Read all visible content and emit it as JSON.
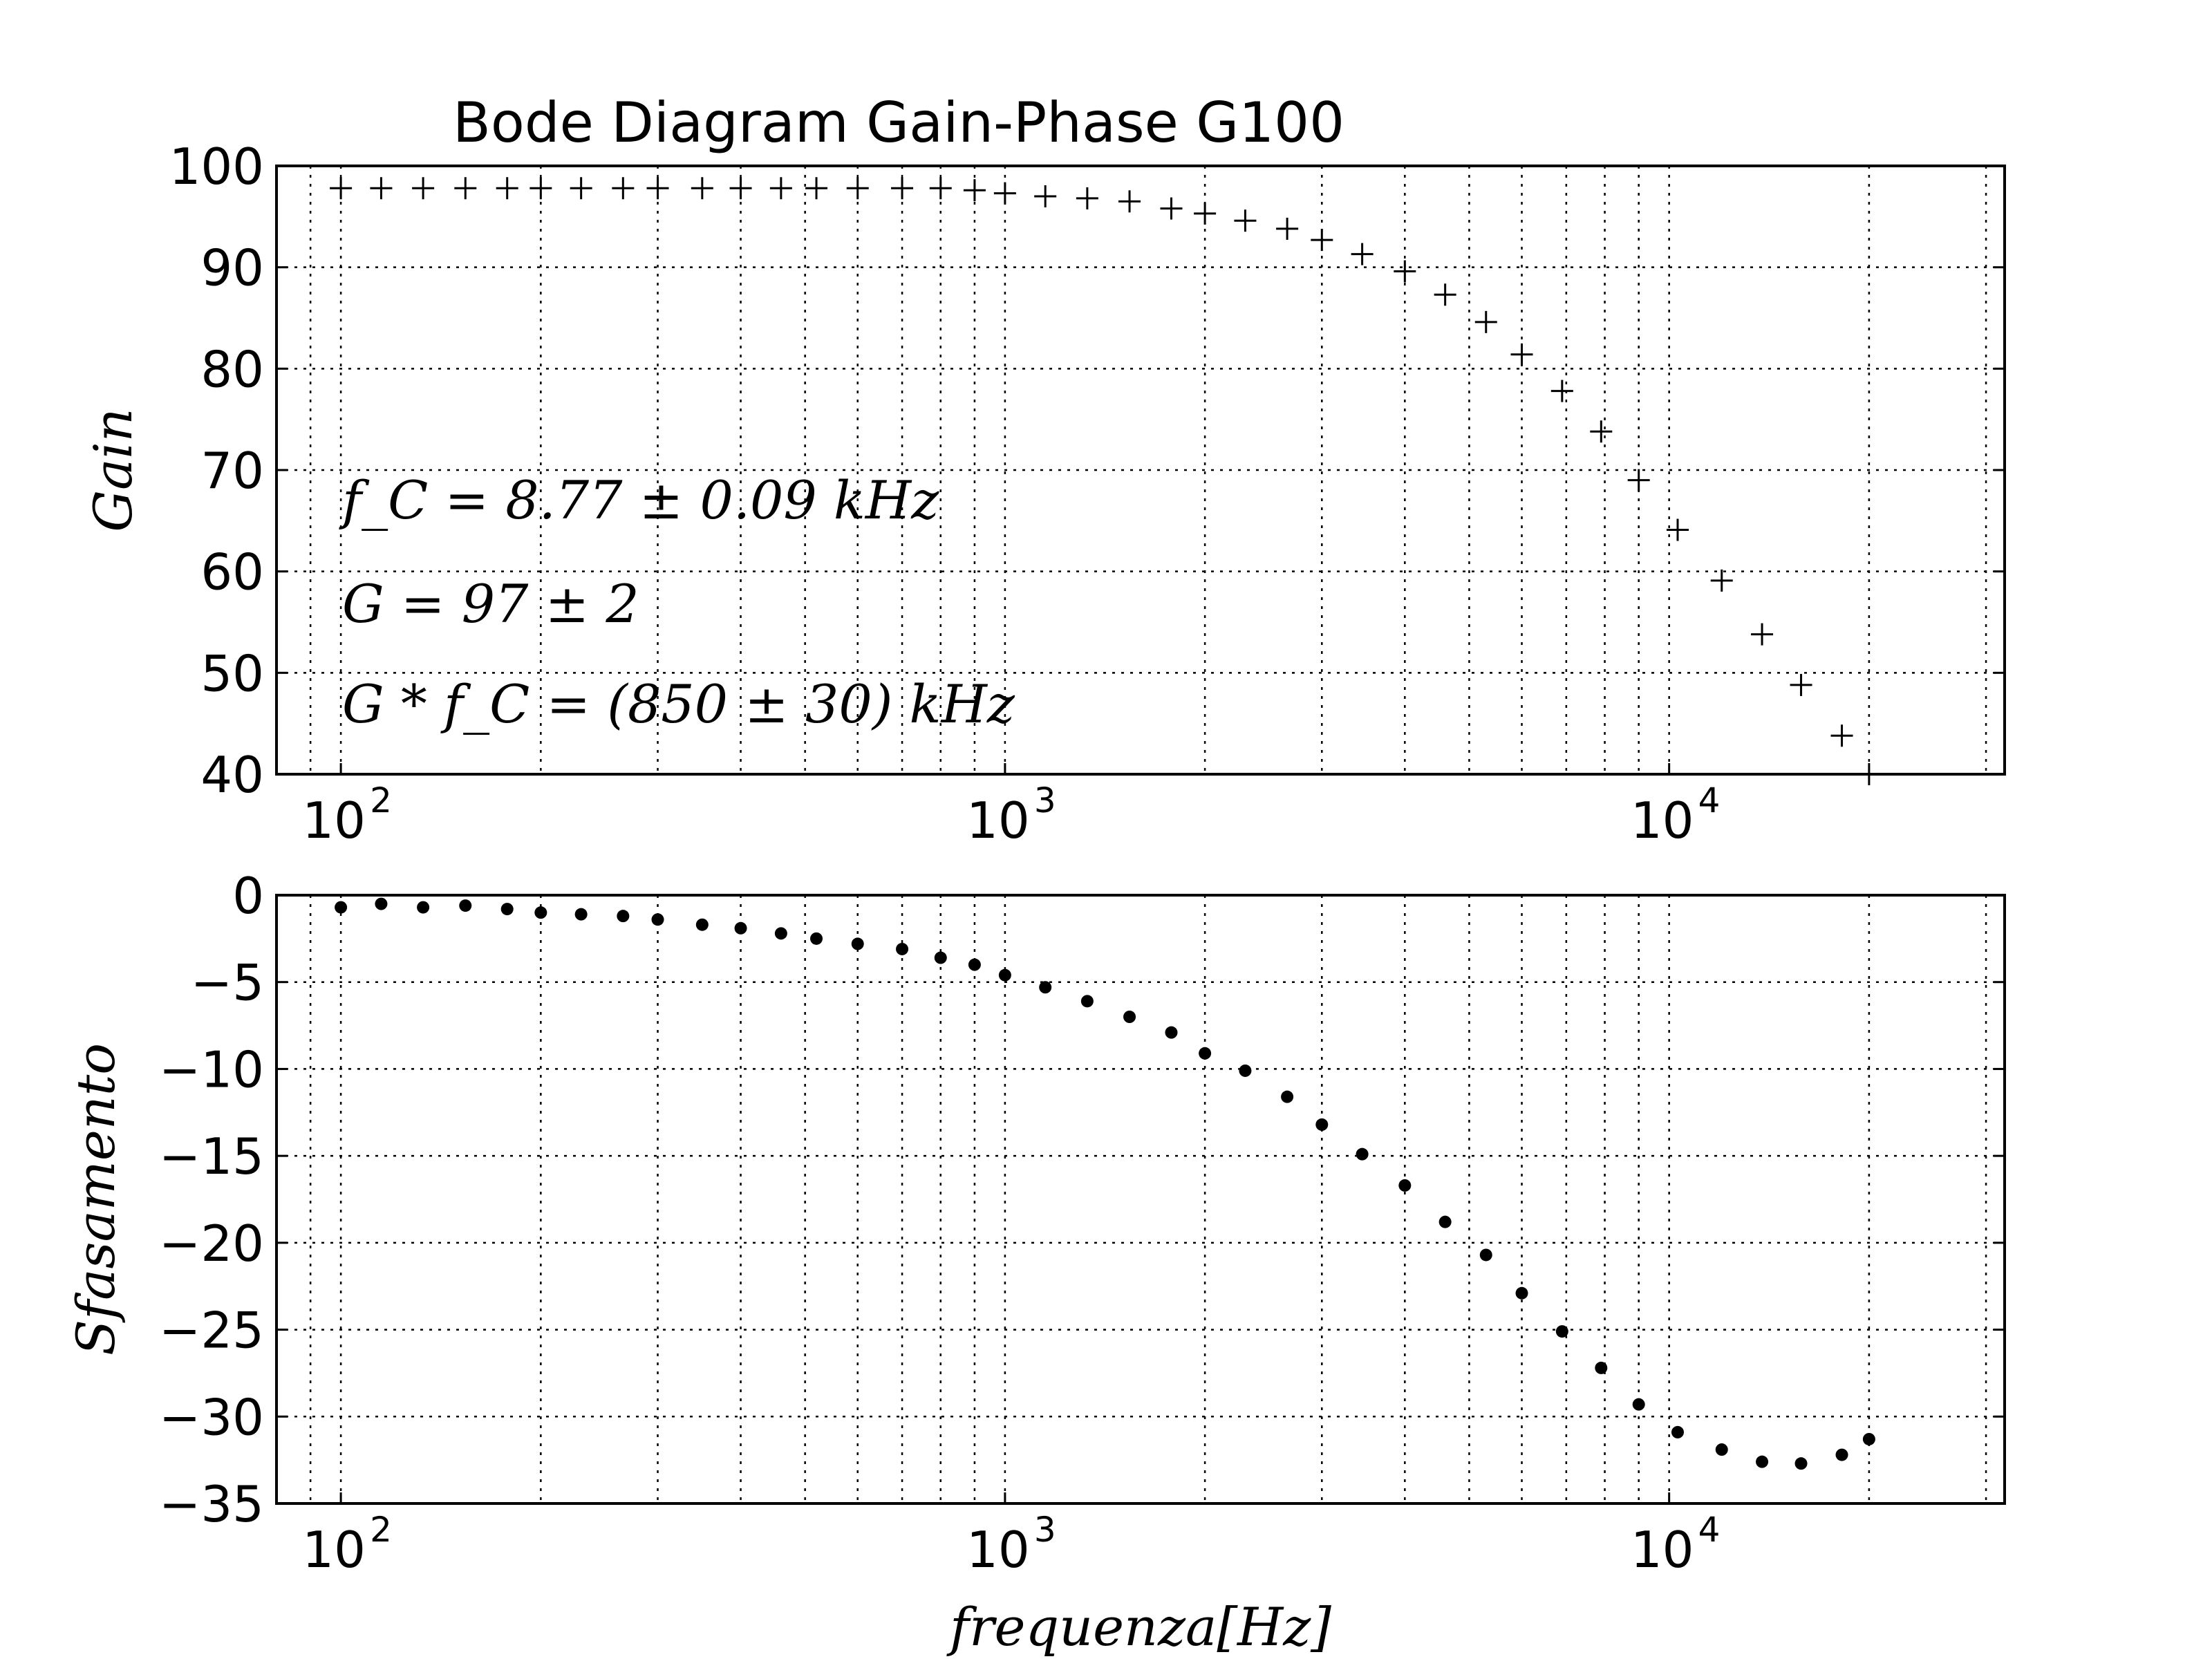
{
  "chart_data": {
    "type": "scatter",
    "title": "Bode Diagram Gain-Phase G100",
    "x_scale": "log",
    "xlim": [
      80,
      32000
    ],
    "grid": true,
    "x": [
      100,
      115,
      133,
      154,
      178,
      200,
      230,
      266,
      300,
      350,
      400,
      460,
      520,
      600,
      700,
      800,
      900,
      1000,
      1150,
      1330,
      1540,
      1780,
      2000,
      2300,
      2660,
      3000,
      3450,
      4000,
      4600,
      5300,
      6000,
      6900,
      7900,
      9000,
      10300,
      12000,
      13800,
      15800,
      18200,
      20000
    ],
    "panels": [
      {
        "name": "gain",
        "ylabel": "Gain",
        "marker": "+",
        "ylim": [
          40,
          100
        ],
        "yticks": [
          40,
          50,
          60,
          70,
          80,
          90,
          100
        ],
        "y": [
          97.8,
          97.8,
          97.8,
          97.8,
          97.8,
          97.8,
          97.8,
          97.8,
          97.8,
          97.8,
          97.8,
          97.8,
          97.8,
          97.8,
          97.8,
          97.8,
          97.6,
          97.3,
          97.0,
          96.8,
          96.5,
          95.8,
          95.3,
          94.6,
          93.8,
          92.7,
          91.3,
          89.6,
          87.3,
          84.6,
          81.4,
          77.8,
          73.8,
          69.0,
          64.1,
          59.1,
          53.8,
          48.8,
          43.8,
          39.7
        ],
        "annotations": [
          "f_C = 8.77 ± 0.09 kHz",
          "G = 97 ± 2",
          "G * f_C = (850 ± 30) kHz"
        ]
      },
      {
        "name": "phase",
        "ylabel": "Sfasamento",
        "marker": "dot",
        "ylim": [
          -35,
          0
        ],
        "yticks": [
          -35,
          -30,
          -25,
          -20,
          -15,
          -10,
          -5,
          0
        ],
        "y": [
          -0.7,
          -0.5,
          -0.7,
          -0.6,
          -0.8,
          -1.0,
          -1.1,
          -1.2,
          -1.4,
          -1.7,
          -1.9,
          -2.2,
          -2.5,
          -2.8,
          -3.1,
          -3.6,
          -4.0,
          -4.6,
          -5.3,
          -6.1,
          -7.0,
          -7.9,
          -9.1,
          -10.1,
          -11.6,
          -13.2,
          -14.9,
          -16.7,
          -18.8,
          -20.7,
          -22.9,
          -25.1,
          -27.2,
          -29.3,
          -30.9,
          -31.9,
          -32.6,
          -32.7,
          -32.2,
          -31.3
        ]
      }
    ],
    "xlabel": "frequenza[Hz]",
    "xticks": [
      {
        "base": "10",
        "exp": "2",
        "value": 100
      },
      {
        "base": "10",
        "exp": "3",
        "value": 1000
      },
      {
        "base": "10",
        "exp": "4",
        "value": 10000
      }
    ]
  }
}
